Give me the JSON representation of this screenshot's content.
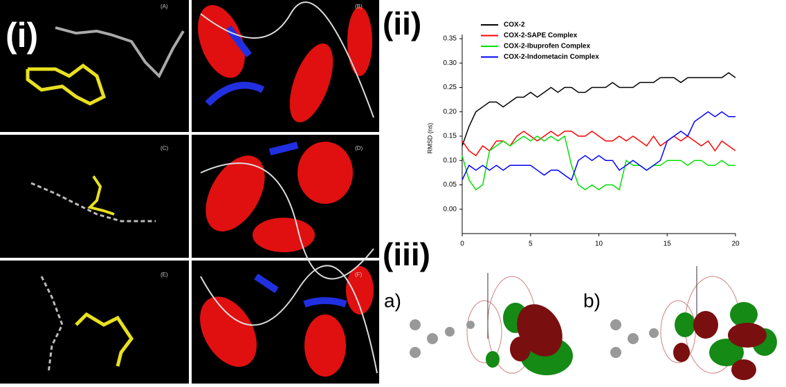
{
  "panel_labels": [
    "(i)",
    "(ii)",
    "(iii)"
  ],
  "subpanels": [
    "(A)",
    "(B)",
    "(C)",
    "(D)",
    "(E)",
    "(F)"
  ],
  "orbitals": [
    "a)",
    "b)"
  ],
  "chart_data": {
    "type": "line",
    "y_label": "RMSD (ns)",
    "x": [
      0,
      0.5,
      1,
      1.5,
      2,
      2.5,
      3,
      3.5,
      4,
      4.5,
      5,
      5.5,
      6,
      6.5,
      7,
      7.5,
      8,
      8.5,
      9,
      9.5,
      10,
      10.5,
      11,
      11.5,
      12,
      12.5,
      13,
      13.5,
      14,
      14.5,
      15,
      15.5,
      16,
      16.5,
      17,
      17.5,
      18,
      18.5,
      19,
      19.5,
      20
    ],
    "series": [
      {
        "name": "COX-2",
        "color": "#000000",
        "values": [
          0.13,
          0.17,
          0.2,
          0.21,
          0.22,
          0.22,
          0.21,
          0.22,
          0.23,
          0.23,
          0.24,
          0.23,
          0.24,
          0.25,
          0.24,
          0.25,
          0.25,
          0.24,
          0.24,
          0.25,
          0.25,
          0.25,
          0.26,
          0.25,
          0.25,
          0.25,
          0.26,
          0.26,
          0.26,
          0.27,
          0.27,
          0.27,
          0.26,
          0.27,
          0.27,
          0.27,
          0.27,
          0.27,
          0.27,
          0.28,
          0.27
        ]
      },
      {
        "name": "COX-2-SAPE Complex",
        "color": "#ff0000",
        "values": [
          0.14,
          0.12,
          0.11,
          0.13,
          0.12,
          0.14,
          0.14,
          0.13,
          0.15,
          0.16,
          0.15,
          0.14,
          0.15,
          0.16,
          0.15,
          0.16,
          0.16,
          0.15,
          0.15,
          0.16,
          0.15,
          0.14,
          0.14,
          0.15,
          0.14,
          0.15,
          0.14,
          0.13,
          0.15,
          0.13,
          0.14,
          0.15,
          0.14,
          0.15,
          0.14,
          0.13,
          0.14,
          0.12,
          0.14,
          0.13,
          0.12
        ]
      },
      {
        "name": "COX-2-Ibuprofen Complex",
        "color": "#00e000",
        "values": [
          0.11,
          0.06,
          0.04,
          0.05,
          0.12,
          0.13,
          0.14,
          0.13,
          0.14,
          0.15,
          0.14,
          0.15,
          0.14,
          0.15,
          0.14,
          0.15,
          0.09,
          0.05,
          0.04,
          0.05,
          0.04,
          0.05,
          0.05,
          0.04,
          0.1,
          0.09,
          0.09,
          0.08,
          0.09,
          0.09,
          0.1,
          0.1,
          0.1,
          0.09,
          0.1,
          0.1,
          0.09,
          0.09,
          0.1,
          0.09,
          0.09
        ]
      },
      {
        "name": "COX-2-Indometacin Complex",
        "color": "#0000ff",
        "values": [
          0.06,
          0.09,
          0.08,
          0.09,
          0.08,
          0.09,
          0.08,
          0.09,
          0.09,
          0.09,
          0.09,
          0.08,
          0.07,
          0.08,
          0.08,
          0.07,
          0.06,
          0.1,
          0.11,
          0.1,
          0.11,
          0.1,
          0.1,
          0.08,
          0.09,
          0.1,
          0.09,
          0.08,
          0.09,
          0.1,
          0.14,
          0.15,
          0.16,
          0.15,
          0.18,
          0.19,
          0.2,
          0.19,
          0.2,
          0.19,
          0.19
        ]
      }
    ],
    "xlim": [
      0,
      20
    ],
    "xticks": [
      0,
      5,
      10,
      15,
      20
    ],
    "ylim": [
      -0.05,
      0.35
    ],
    "yticks": [
      {
        "value": 0,
        "label": "0.00"
      },
      {
        "value": 0.05,
        "label": "0.05"
      },
      {
        "value": 0.1,
        "label": "0.10"
      },
      {
        "value": 0.15,
        "label": "0.15"
      },
      {
        "value": 0.2,
        "label": "0.20"
      },
      {
        "value": 0.25,
        "label": "0.25"
      },
      {
        "value": 0.3,
        "label": "0.30"
      },
      {
        "value": 0.35,
        "label": "0.35"
      }
    ],
    "legend": "upper left"
  }
}
